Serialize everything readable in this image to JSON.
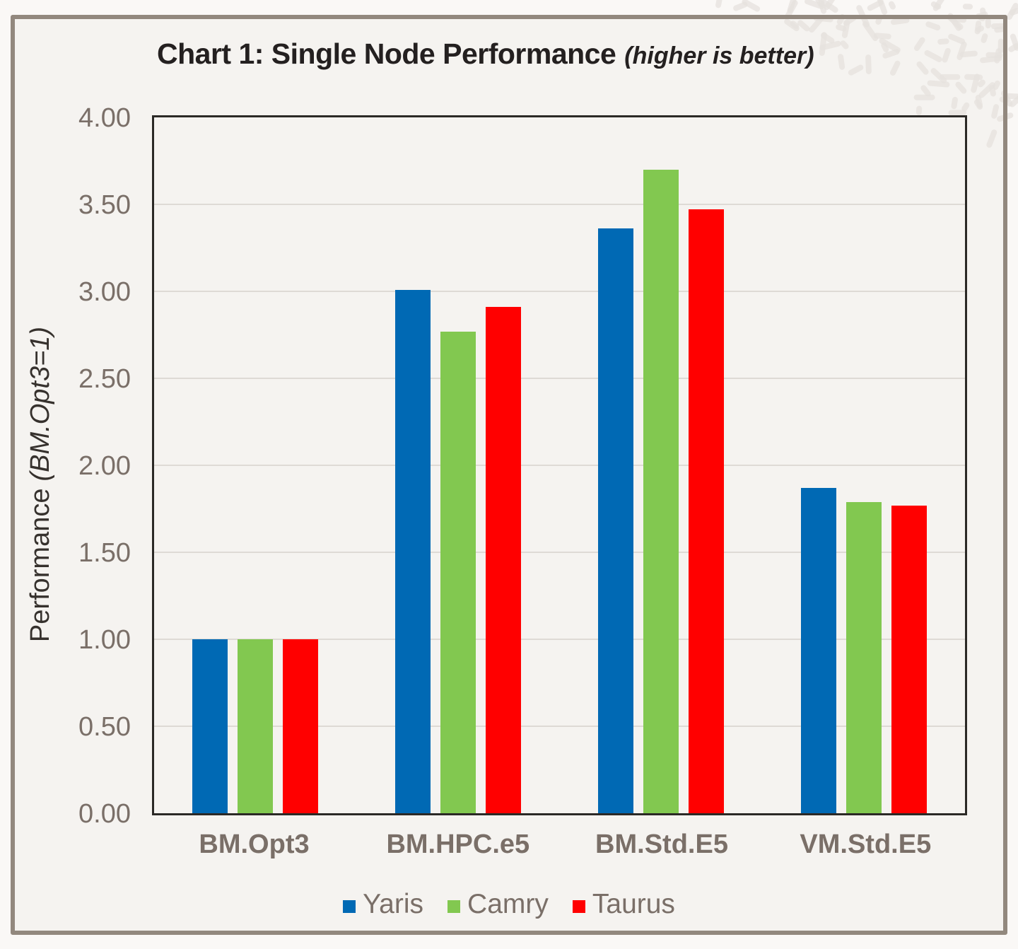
{
  "chart_data": {
    "type": "bar",
    "title": "Chart 1: Single Node Performance",
    "subtitle": "(higher is better)",
    "ylabel": "Performance",
    "ylabel_note": "(BM.Opt3=1)",
    "categories": [
      "BM.Opt3",
      "BM.HPC.e5",
      "BM.Std.E5",
      "VM.Std.E5"
    ],
    "series": [
      {
        "name": "Yaris",
        "color": "#0069B4",
        "values": [
          1.0,
          3.01,
          3.36,
          1.87
        ]
      },
      {
        "name": "Camry",
        "color": "#82C850",
        "values": [
          1.0,
          2.77,
          3.7,
          1.79
        ]
      },
      {
        "name": "Taurus",
        "color": "#FF0000",
        "values": [
          1.0,
          2.91,
          3.47,
          1.77
        ]
      }
    ],
    "ylim": [
      0,
      4
    ],
    "ytick_step": 0.5,
    "yticks": [
      "0.00",
      "0.50",
      "1.00",
      "1.50",
      "2.00",
      "2.50",
      "3.00",
      "3.50",
      "4.00"
    ],
    "grid": true,
    "legend_position": "bottom"
  },
  "style_colors": {
    "page_bg": "#FAF8F6",
    "panel_bg": "#F5F3F0",
    "panel_border": "#92887E",
    "plot_border": "#2B2926",
    "grid": "#DEDAD5",
    "axis_text": "#7A6F68",
    "title_text": "#242020",
    "ylabel_text": "#36312D",
    "texture": "#E5E1DD"
  }
}
